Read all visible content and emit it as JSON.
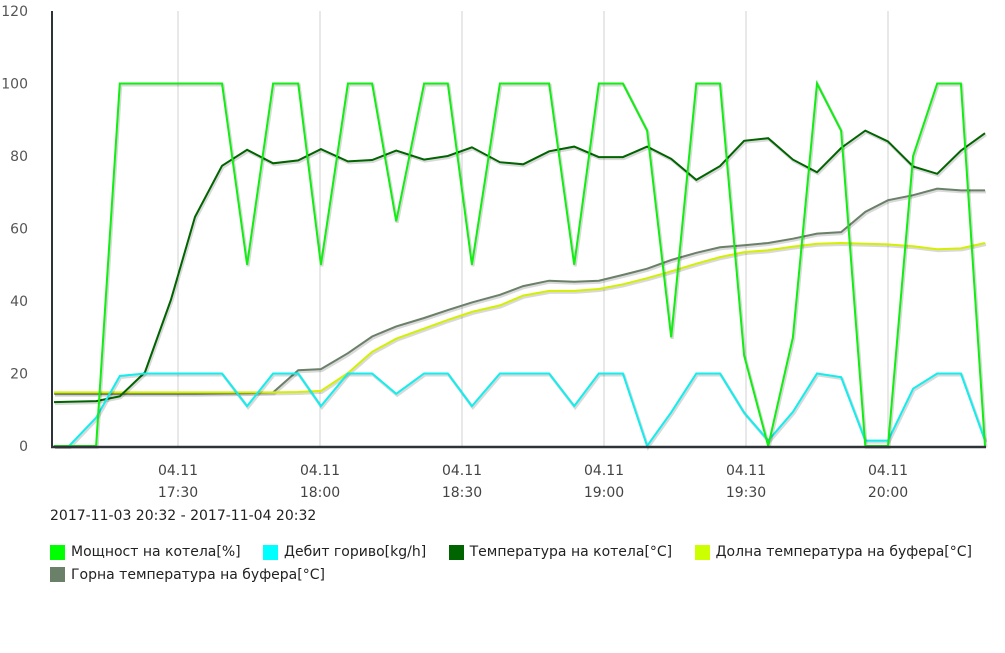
{
  "chart_data": {
    "type": "line",
    "title": "",
    "date_range": "2017-11-03 20:32 - 2017-11-04 20:32",
    "x_unit": "minutes after 17:00 on 04.11",
    "x": [
      3.8,
      7.0,
      12.7,
      17.7,
      23.0,
      28.5,
      33.6,
      39.3,
      44.6,
      50.1,
      55.4,
      60.2,
      65.9,
      71.0,
      76.1,
      82.0,
      87.0,
      92.1,
      98.0,
      102.9,
      108.4,
      113.7,
      118.9,
      124.0,
      129.1,
      134.2,
      139.5,
      144.5,
      149.6,
      154.7,
      159.9,
      165.0,
      170.1,
      175.2,
      180.0,
      185.3,
      190.4,
      195.4,
      200.5
    ],
    "xlim": [
      3.6,
      200.5
    ],
    "ylim": [
      0,
      120
    ],
    "yticks": [
      "0",
      "20",
      "40",
      "60",
      "80",
      "100",
      "120"
    ],
    "xticks": [
      {
        "value": 30,
        "date": "04.11",
        "time": "17:30"
      },
      {
        "value": 60,
        "date": "04.11",
        "time": "18:00"
      },
      {
        "value": 90,
        "date": "04.11",
        "time": "18:30"
      },
      {
        "value": 120,
        "date": "04.11",
        "time": "19:00"
      },
      {
        "value": 150,
        "date": "04.11",
        "time": "19:30"
      },
      {
        "value": 180,
        "date": "04.11",
        "time": "20:00"
      }
    ],
    "grid": "vertical",
    "legend_position": "bottom",
    "series": [
      {
        "name": "Мощност на котела[%]",
        "color": "#11ee11",
        "values": [
          0,
          0,
          0,
          100,
          100,
          100,
          100,
          100,
          50,
          100,
          100,
          50,
          100,
          100,
          62,
          100,
          100,
          50,
          100,
          100,
          100,
          50,
          100,
          100,
          87,
          30,
          100,
          100,
          25,
          0,
          30,
          100,
          87,
          0,
          0,
          80,
          100,
          100,
          0
        ]
      },
      {
        "name": "Дебит гориво[kg/h]",
        "color": "#11eeee",
        "values": [
          0,
          0,
          7.8,
          19.3,
          20,
          20,
          20,
          20,
          11,
          20,
          20,
          11,
          20,
          20,
          14.4,
          20,
          20,
          11,
          20,
          20,
          20,
          11,
          20,
          20,
          0,
          9.3,
          20,
          20,
          9.2,
          1.5,
          9.4,
          20,
          19,
          1.5,
          1.5,
          15.8,
          20,
          20,
          1.5
        ]
      },
      {
        "name": "Температура на котела[°C]",
        "color": "#006400",
        "values": [
          12.1,
          12.2,
          12.4,
          13.7,
          20.3,
          40.3,
          63.2,
          77.3,
          81.7,
          78,
          78.8,
          81.9,
          78.5,
          78.9,
          81.5,
          79,
          80,
          82.4,
          78.3,
          77.7,
          81.3,
          82.6,
          79.7,
          79.7,
          82.6,
          79.2,
          73.4,
          77.2,
          84.2,
          84.9,
          79,
          75.5,
          82.2,
          87,
          84,
          77.1,
          75.1,
          81.5,
          86.3
        ]
      },
      {
        "name": "Долна температура на буфера[°C]",
        "color": "#d4f000",
        "values": [
          14.8,
          14.8,
          14.8,
          14.8,
          14.8,
          14.8,
          14.8,
          14.8,
          14.8,
          14.8,
          14.9,
          15.2,
          20.1,
          26,
          29.6,
          32.4,
          34.8,
          37,
          38.8,
          41.5,
          42.8,
          42.8,
          43.3,
          44.6,
          46.3,
          48.2,
          50.3,
          52.1,
          53.5,
          54,
          55,
          55.8,
          56,
          55.8,
          55.6,
          55.1,
          54.3,
          54.5,
          56
        ]
      },
      {
        "name": "Горна температура на буфера[°C]",
        "color": "#6b8068",
        "values": [
          14.4,
          14.4,
          14.4,
          14.4,
          14.4,
          14.4,
          14.4,
          14.5,
          14.6,
          14.8,
          20.9,
          21.2,
          25.6,
          30.2,
          33,
          35.3,
          37.5,
          39.6,
          41.7,
          44.1,
          45.6,
          45.3,
          45.6,
          47.2,
          48.9,
          51.3,
          53.3,
          54.8,
          55.4,
          56,
          57.2,
          58.6,
          59,
          64.6,
          67.8,
          69.2,
          71,
          70.5,
          70.5
        ]
      }
    ]
  }
}
